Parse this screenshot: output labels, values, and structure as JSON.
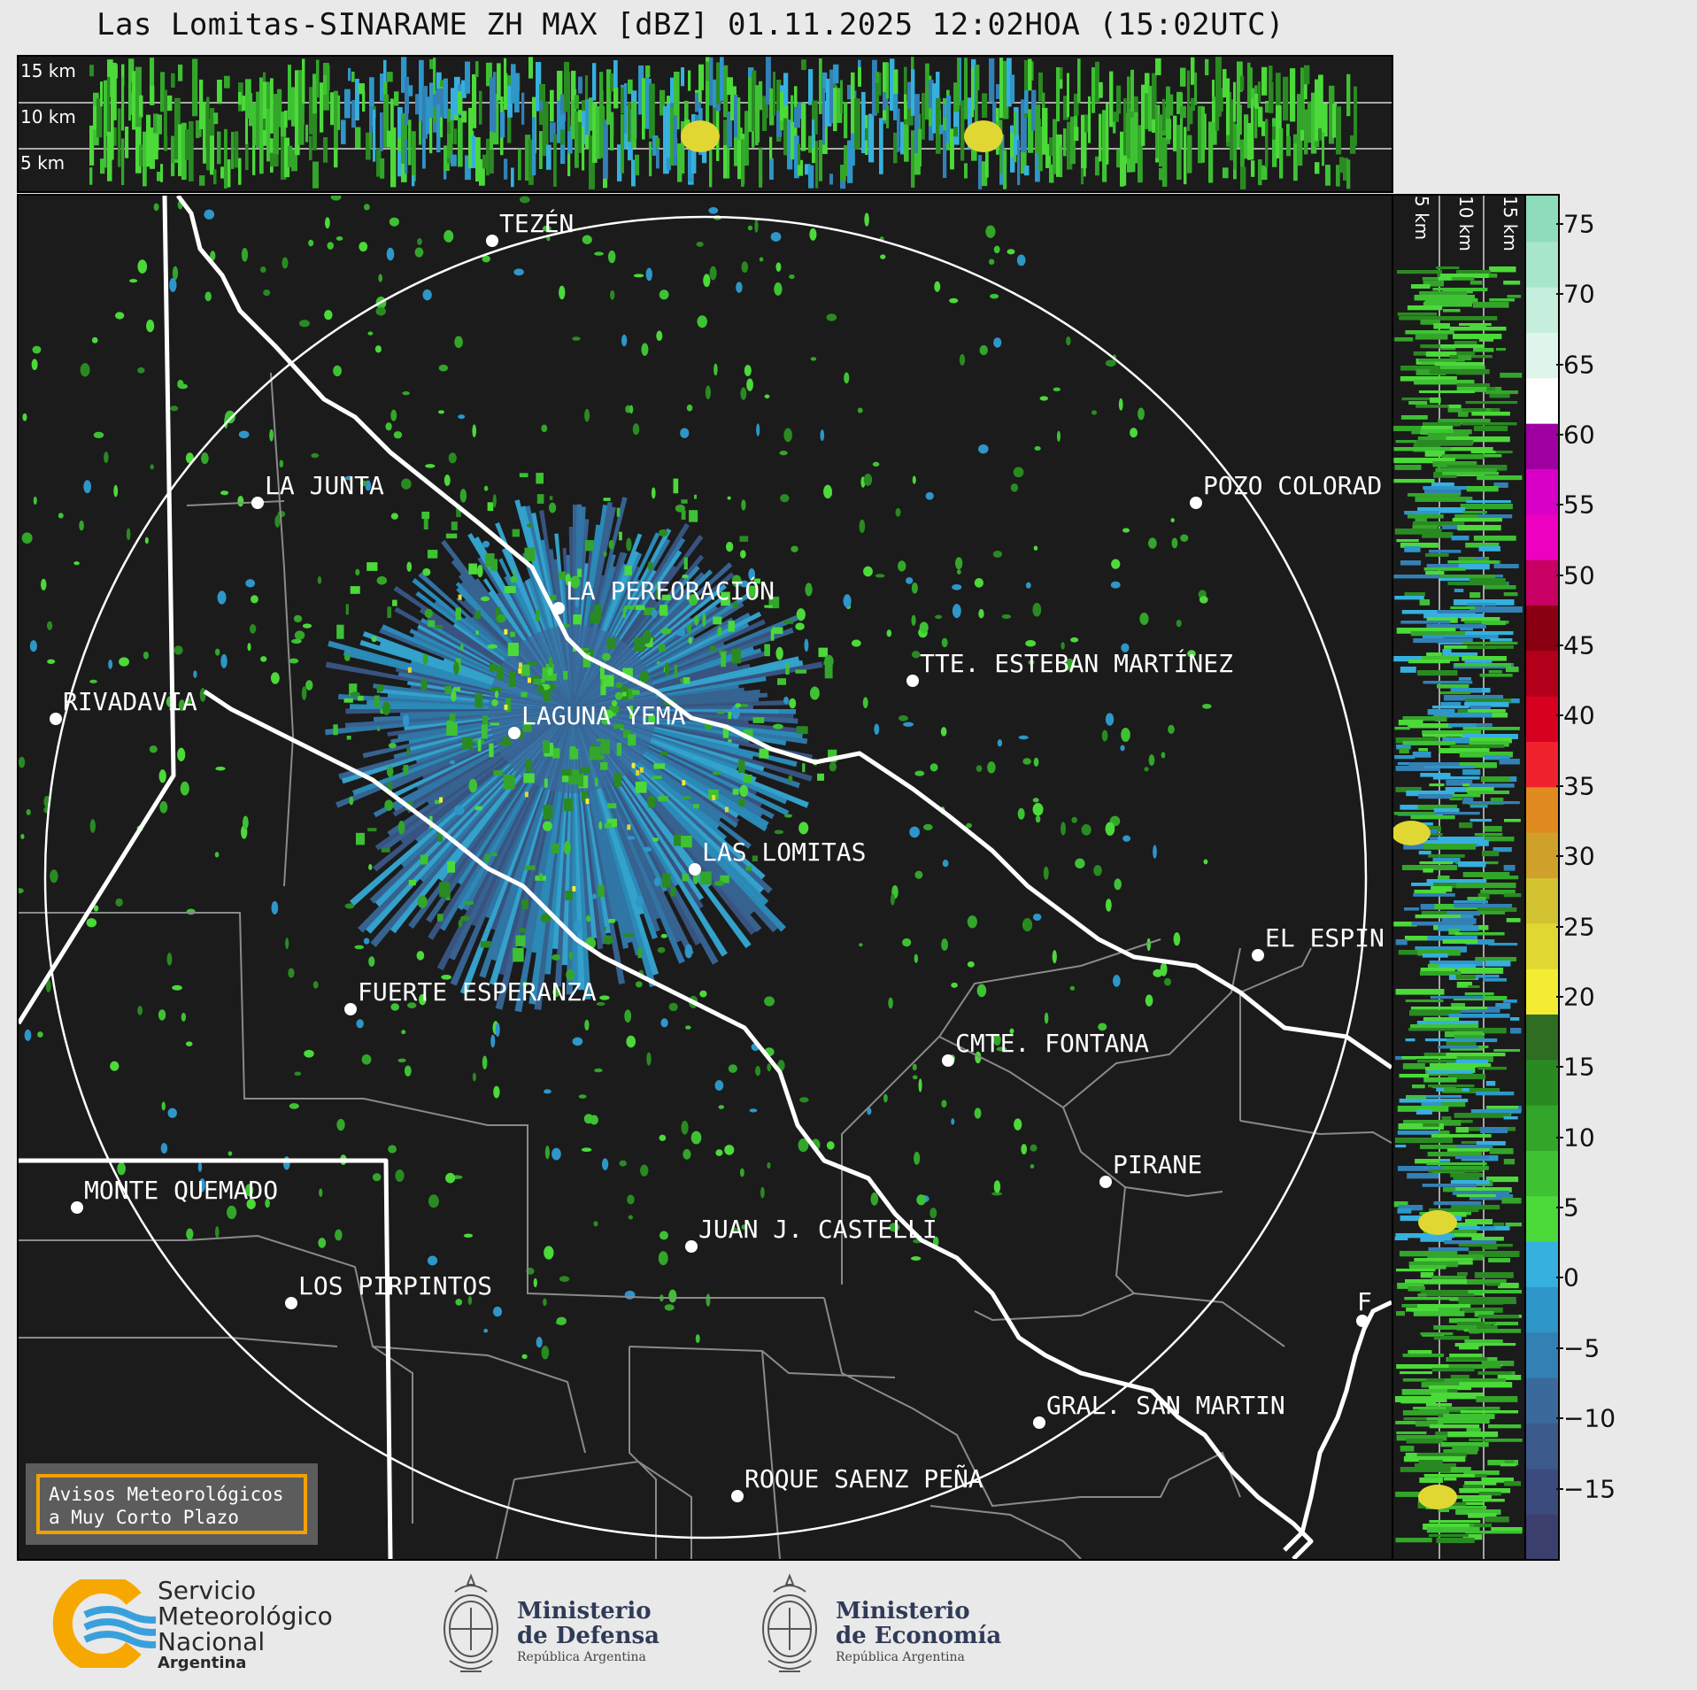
{
  "title": "Las Lomitas-SINARAME ZH MAX [dBZ] 01.11.2025 12:02HOA (15:02UTC)",
  "top_panel": {
    "altitudes": [
      "15 km",
      "10 km",
      "5 km"
    ]
  },
  "side_panel": {
    "altitudes": [
      "5 km",
      "10 km",
      "15 km"
    ]
  },
  "colorbar": {
    "unit": "dBZ",
    "ticks": [
      "75",
      "70",
      "65",
      "60",
      "55",
      "50",
      "45",
      "40",
      "35",
      "30",
      "25",
      "20",
      "15",
      "10",
      "5",
      "0",
      "−5",
      "−10",
      "−15"
    ],
    "range": [
      -20,
      77
    ],
    "colors": [
      "#3b3f6e",
      "#3c4b7e",
      "#3c5a8c",
      "#3a6a9c",
      "#3380b4",
      "#2e96c8",
      "#36b0de",
      "#4cd93a",
      "#3ec234",
      "#33a52a",
      "#2a8a22",
      "#2e6d22",
      "#f4ec33",
      "#e0d733",
      "#d3c333",
      "#cfa02a",
      "#e08a1f",
      "#f0222e",
      "#d60020",
      "#b2001a",
      "#8a0012",
      "#c80064",
      "#ee00c0",
      "#d800c6",
      "#a000a2",
      "#ffffff",
      "#dff5ec",
      "#c6eedc",
      "#a8e6cc",
      "#8fdcbd"
    ]
  },
  "map": {
    "cities": [
      {
        "name": "TEZÉN"
      },
      {
        "name": "LA JUNTA"
      },
      {
        "name": "POZO COLORAD"
      },
      {
        "name": "LA PERFORACIÓN"
      },
      {
        "name": "TTE. ESTEBAN MARTÍNEZ"
      },
      {
        "name": "RIVADAVIA"
      },
      {
        "name": "LAGUNA YEMA"
      },
      {
        "name": "LAS LOMITAS"
      },
      {
        "name": "EL ESPIN"
      },
      {
        "name": "FUERTE ESPERANZA"
      },
      {
        "name": "CMTE. FONTANA"
      },
      {
        "name": "PIRANE"
      },
      {
        "name": "MONTE QUEMADO"
      },
      {
        "name": "JUAN J. CASTELLI"
      },
      {
        "name": "LOS PIRPINTOS"
      },
      {
        "name": "F"
      },
      {
        "name": "GRAL. SAN MARTIN"
      },
      {
        "name": "ROQUE SAENZ PEÑA"
      }
    ],
    "alert_box": {
      "line1": "Avisos Meteorológicos",
      "line2": "a Muy Corto Plazo"
    }
  },
  "footer": {
    "smn": {
      "line1": "Servicio",
      "line2": "Meteorológico",
      "line3": "Nacional",
      "line4": "Argentina"
    },
    "defensa": {
      "line1": "Ministerio",
      "line2": "de Defensa",
      "line3": "República Argentina"
    },
    "economia": {
      "line1": "Ministerio",
      "line2": "de Economía",
      "line3": "República Argentina"
    }
  }
}
